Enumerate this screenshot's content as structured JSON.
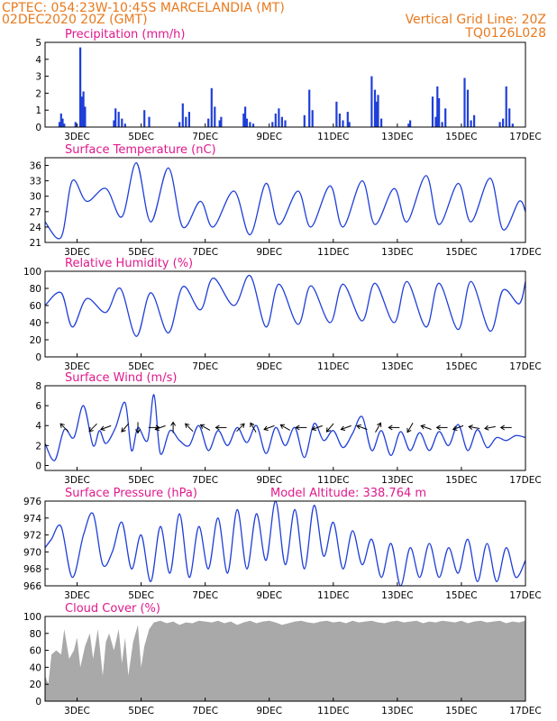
{
  "header": {
    "line1_left": "CPTEC:  054:23W-10:45S  MARCELANDIA (MT)",
    "line2_left": "02DEC2020 20Z (GMT)",
    "line1_right": "Vertical Grid Line: 20Z",
    "line2_right": "TQ0126L028"
  },
  "colors": {
    "header": "#e87a1e",
    "title": "#e0198c",
    "line": "#1f3fd8",
    "bar": "#1f3fd8",
    "cloud": "#a9a9a9",
    "wind_arrow": "#000000"
  },
  "chart_data": [
    {
      "type": "bar",
      "title": "Precipitation (mm/h)",
      "ylim": [
        0,
        5
      ],
      "yticks": [
        "0",
        "1",
        "2",
        "3",
        "4",
        "5"
      ],
      "xticks": [
        "3DEC",
        "5DEC",
        "7DEC",
        "9DEC",
        "11DEC",
        "13DEC",
        "15DEC",
        "17DEC"
      ],
      "x": [
        2.45,
        2.5,
        2.55,
        2.6,
        2.95,
        3.1,
        3.15,
        3.2,
        3.25,
        4.15,
        4.2,
        4.3,
        4.4,
        4.5,
        5.1,
        5.25,
        6.2,
        6.3,
        6.4,
        6.5,
        7.1,
        7.2,
        7.3,
        7.45,
        7.5,
        8.2,
        8.25,
        8.3,
        8.4,
        8.5,
        9.1,
        9.2,
        9.3,
        9.4,
        9.5,
        10.1,
        10.25,
        10.35,
        11.1,
        11.2,
        11.3,
        11.45,
        11.5,
        12.2,
        12.3,
        12.35,
        12.4,
        12.5,
        13.35,
        13.4,
        14.1,
        14.2,
        14.25,
        14.3,
        14.4,
        14.5,
        15.1,
        15.2,
        15.3,
        15.4,
        16.2,
        16.3,
        16.4,
        16.5,
        16.6
      ],
      "values": [
        0.3,
        0.8,
        0.5,
        0.2,
        0.3,
        4.7,
        1.8,
        2.1,
        1.2,
        0.4,
        1.1,
        0.9,
        0.5,
        0.2,
        1.0,
        0.6,
        0.3,
        1.4,
        0.6,
        0.9,
        0.5,
        2.3,
        1.2,
        0.4,
        0.6,
        0.8,
        1.2,
        0.5,
        0.3,
        0.2,
        0.3,
        0.8,
        1.1,
        0.6,
        0.4,
        0.7,
        2.2,
        1.0,
        1.5,
        0.8,
        0.4,
        0.9,
        0.3,
        3.0,
        2.2,
        1.5,
        1.9,
        0.5,
        0.2,
        0.4,
        1.8,
        0.6,
        2.4,
        1.7,
        0.3,
        1.1,
        2.9,
        2.2,
        0.4,
        0.7,
        0.3,
        0.5,
        2.4,
        1.1,
        0.2
      ]
    },
    {
      "type": "line",
      "title": "Surface Temperature (nC)",
      "ylim": [
        21,
        37.5
      ],
      "yticks": [
        "21",
        "24",
        "27",
        "30",
        "33",
        "36"
      ],
      "xticks": [
        "3DEC",
        "5DEC",
        "7DEC",
        "9DEC",
        "11DEC",
        "13DEC",
        "15DEC",
        "17DEC"
      ],
      "x": [
        2.0,
        2.5,
        2.85,
        3.3,
        3.9,
        4.4,
        4.85,
        5.3,
        5.85,
        6.3,
        6.85,
        7.25,
        7.9,
        8.4,
        8.9,
        9.3,
        9.9,
        10.3,
        10.9,
        11.3,
        11.9,
        12.3,
        12.9,
        13.3,
        13.9,
        14.3,
        14.9,
        15.3,
        15.9,
        16.3,
        16.8,
        17.0
      ],
      "values": [
        25,
        22,
        33,
        29,
        31.5,
        26,
        36.5,
        25,
        35.5,
        24,
        29,
        24,
        31,
        22.5,
        32.5,
        24.5,
        31,
        24,
        32,
        24,
        33,
        24.5,
        31.5,
        25,
        34,
        24.5,
        32.5,
        25,
        33.5,
        23.5,
        29,
        27
      ]
    },
    {
      "type": "line",
      "title": "Relative Humidity (%)",
      "ylim": [
        0,
        100
      ],
      "yticks": [
        "0",
        "20",
        "40",
        "60",
        "80",
        "100"
      ],
      "xticks": [
        "3DEC",
        "5DEC",
        "7DEC",
        "9DEC",
        "11DEC",
        "13DEC",
        "15DEC",
        "17DEC"
      ],
      "x": [
        2.0,
        2.5,
        2.85,
        3.3,
        3.9,
        4.35,
        4.85,
        5.3,
        5.85,
        6.3,
        6.85,
        7.25,
        7.9,
        8.4,
        8.9,
        9.3,
        9.9,
        10.3,
        10.9,
        11.3,
        11.9,
        12.3,
        12.9,
        13.3,
        13.9,
        14.3,
        14.9,
        15.3,
        15.9,
        16.3,
        16.8,
        17.0
      ],
      "values": [
        60,
        75,
        35,
        68,
        52,
        80,
        24,
        75,
        28,
        82,
        55,
        92,
        60,
        95,
        35,
        85,
        38,
        83,
        40,
        85,
        42,
        86,
        40,
        88,
        35,
        86,
        32,
        88,
        30,
        78,
        62,
        88
      ]
    },
    {
      "type": "line",
      "title": "Surface Wind (m/s)",
      "ylim": [
        -0.5,
        8
      ],
      "yticks": [
        "0",
        "2",
        "4",
        "6",
        "8"
      ],
      "xticks": [
        "3DEC",
        "5DEC",
        "7DEC",
        "9DEC",
        "11DEC",
        "13DEC",
        "15DEC",
        "17DEC"
      ],
      "x": [
        2.0,
        2.3,
        2.6,
        2.9,
        3.2,
        3.5,
        3.7,
        3.9,
        4.2,
        4.5,
        4.7,
        4.9,
        5.2,
        5.4,
        5.6,
        5.9,
        6.2,
        6.5,
        6.8,
        7.1,
        7.4,
        7.7,
        8.0,
        8.3,
        8.6,
        8.9,
        9.2,
        9.5,
        9.8,
        10.1,
        10.4,
        10.7,
        11.0,
        11.3,
        11.6,
        11.9,
        12.2,
        12.5,
        12.8,
        13.1,
        13.4,
        13.7,
        14.0,
        14.3,
        14.6,
        14.9,
        15.2,
        15.5,
        15.8,
        16.1,
        16.4,
        16.7,
        17.0
      ],
      "values": [
        2.2,
        0.5,
        3.6,
        2.8,
        6.0,
        2.0,
        3.5,
        2.2,
        3.8,
        6.3,
        1.5,
        3.8,
        2.5,
        7.1,
        1.2,
        3.5,
        2.5,
        2.0,
        4.0,
        1.5,
        3.5,
        2.0,
        3.8,
        2.3,
        4.0,
        1.2,
        3.8,
        2.0,
        3.8,
        0.8,
        4.2,
        2.5,
        3.5,
        1.8,
        3.2,
        4.9,
        1.5,
        3.5,
        1.0,
        3.4,
        1.5,
        3.3,
        1.5,
        3.4,
        2.0,
        4.1,
        1.5,
        3.6,
        1.8,
        2.8,
        2.5,
        3.0,
        2.8
      ],
      "arrow_x": [
        2.6,
        3.5,
        3.9,
        4.5,
        4.9,
        5.4,
        5.6,
        6.0,
        6.5,
        7.0,
        7.5,
        8.1,
        8.5,
        9.0,
        9.5,
        10.0,
        10.5,
        10.9,
        11.4,
        11.9,
        12.4,
        12.9,
        13.4,
        13.9,
        14.4,
        14.9,
        15.4,
        15.9,
        16.4
      ],
      "arrow_dir": [
        135,
        225,
        200,
        230,
        270,
        0,
        200,
        90,
        135,
        150,
        180,
        45,
        120,
        200,
        150,
        180,
        200,
        230,
        200,
        160,
        60,
        180,
        240,
        160,
        180,
        200,
        170,
        190,
        180
      ]
    },
    {
      "type": "line",
      "title": "Surface Pressure (hPa)",
      "annotation": "Model Altitude: 338.764 m",
      "ylim": [
        966,
        976
      ],
      "yticks": [
        "966",
        "968",
        "970",
        "972",
        "974",
        "976"
      ],
      "xticks": [
        "3DEC",
        "5DEC",
        "7DEC",
        "9DEC",
        "11DEC",
        "13DEC",
        "15DEC",
        "17DEC"
      ],
      "x": [
        2.0,
        2.2,
        2.5,
        2.85,
        3.2,
        3.5,
        3.8,
        4.1,
        4.4,
        4.7,
        5.0,
        5.3,
        5.6,
        5.9,
        6.2,
        6.5,
        6.8,
        7.1,
        7.4,
        7.7,
        8.0,
        8.3,
        8.6,
        8.9,
        9.2,
        9.5,
        9.8,
        10.1,
        10.4,
        10.7,
        11.0,
        11.3,
        11.6,
        11.9,
        12.2,
        12.5,
        12.8,
        13.1,
        13.4,
        13.7,
        14.0,
        14.3,
        14.6,
        14.9,
        15.2,
        15.5,
        15.8,
        16.1,
        16.4,
        16.7,
        17.0
      ],
      "values": [
        970.5,
        971.5,
        973,
        967,
        972,
        974.5,
        968.5,
        970,
        973.5,
        968,
        972,
        966.5,
        973,
        967.5,
        974.5,
        967,
        973,
        968,
        974,
        967.5,
        975,
        968,
        974.5,
        969,
        976,
        968.5,
        975,
        968,
        975.5,
        969.5,
        973.5,
        968,
        972.5,
        968.5,
        971.5,
        967,
        971,
        966,
        970.5,
        967,
        971,
        967,
        970.5,
        967.5,
        971.5,
        966.5,
        971,
        966.5,
        970.5,
        967,
        969
      ]
    },
    {
      "type": "area",
      "title": "Cloud Cover (%)",
      "ylim": [
        0,
        100
      ],
      "yticks": [
        "0",
        "20",
        "40",
        "60",
        "80",
        "100"
      ],
      "xticks": [
        "3DEC",
        "5DEC",
        "7DEC",
        "9DEC",
        "11DEC",
        "13DEC",
        "15DEC",
        "17DEC"
      ],
      "x": [
        2.0,
        2.1,
        2.2,
        2.35,
        2.5,
        2.6,
        2.75,
        2.9,
        3.0,
        3.1,
        3.25,
        3.4,
        3.5,
        3.65,
        3.8,
        3.9,
        4.0,
        4.15,
        4.3,
        4.4,
        4.5,
        4.6,
        4.75,
        4.9,
        5.0,
        5.1,
        5.25,
        5.4,
        5.6,
        5.8,
        6.0,
        6.2,
        6.4,
        6.6,
        6.8,
        7.0,
        7.2,
        7.4,
        7.6,
        7.8,
        8.0,
        8.2,
        8.4,
        8.6,
        8.8,
        9.0,
        9.2,
        9.4,
        9.6,
        9.8,
        10.0,
        10.2,
        10.4,
        10.6,
        10.8,
        11.0,
        11.2,
        11.4,
        11.6,
        11.8,
        12.0,
        12.2,
        12.4,
        12.6,
        12.8,
        13.0,
        13.2,
        13.4,
        13.6,
        13.8,
        14.0,
        14.2,
        14.4,
        14.6,
        14.8,
        15.0,
        15.2,
        15.4,
        15.6,
        15.8,
        16.0,
        16.2,
        16.4,
        16.6,
        16.8,
        17.0
      ],
      "values": [
        30,
        20,
        55,
        60,
        55,
        85,
        50,
        60,
        75,
        40,
        65,
        80,
        50,
        85,
        30,
        70,
        80,
        60,
        85,
        45,
        75,
        30,
        70,
        90,
        40,
        65,
        85,
        93,
        95,
        92,
        94,
        90,
        93,
        92,
        95,
        94,
        93,
        95,
        92,
        94,
        90,
        93,
        95,
        92,
        94,
        95,
        93,
        90,
        92,
        94,
        95,
        93,
        92,
        94,
        95,
        93,
        94,
        92,
        95,
        93,
        94,
        95,
        93,
        92,
        94,
        95,
        93,
        94,
        95,
        92,
        94,
        93,
        95,
        94,
        93,
        95,
        92,
        94,
        95,
        93,
        94,
        95,
        92,
        94,
        93,
        95
      ]
    }
  ]
}
